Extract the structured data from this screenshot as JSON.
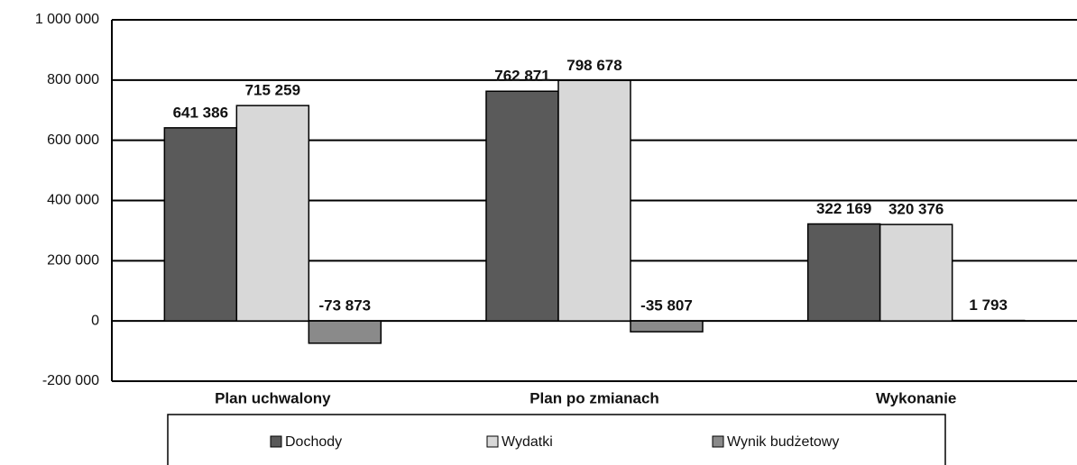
{
  "chart_data": {
    "type": "bar",
    "categories": [
      "Plan uchwalony",
      "Plan po zmianach",
      "Wykonanie"
    ],
    "series": [
      {
        "name": "Dochody",
        "color": "#5a5a5a",
        "values": [
          641386,
          762871,
          322169
        ],
        "value_labels": [
          "641 386",
          "762 871",
          "322 169"
        ]
      },
      {
        "name": "Wydatki",
        "color": "#d8d8d8",
        "values": [
          715259,
          798678,
          320376
        ],
        "value_labels": [
          "715 259",
          "798 678",
          "320 376"
        ]
      },
      {
        "name": "Wynik budżetowy",
        "color": "#8a8a8a",
        "values": [
          -73873,
          -35807,
          1793
        ],
        "value_labels": [
          "-73 873",
          "-35 807",
          "1 793"
        ]
      }
    ],
    "ylim": [
      -200000,
      1000000
    ],
    "yticks": [
      {
        "value": -200000,
        "label": "-200 000"
      },
      0,
      {
        "value": 200000,
        "label": "200 000"
      },
      {
        "value": 400000,
        "label": "400 000"
      },
      {
        "value": 600000,
        "label": "600 000"
      },
      {
        "value": 800000,
        "label": "800 000"
      },
      {
        "value": 1000000,
        "label": "1 000 000"
      }
    ],
    "grid": true,
    "legend": "bottom"
  }
}
